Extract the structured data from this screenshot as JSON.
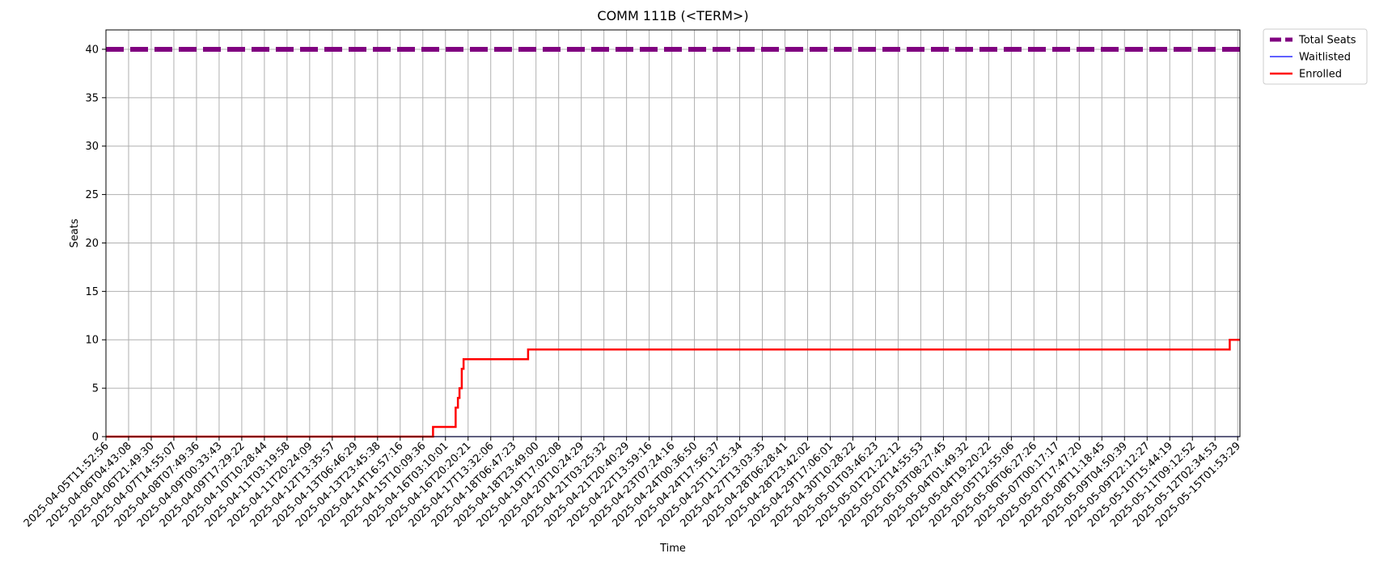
{
  "chart_data": {
    "type": "line",
    "title": "COMM 111B (<TERM>)",
    "xlabel": "Time",
    "ylabel": "Seats",
    "ylim": [
      0,
      42
    ],
    "yticks": [
      0,
      5,
      10,
      15,
      20,
      25,
      30,
      35,
      40
    ],
    "grid": true,
    "legend_position": "outside-top-right",
    "x_tick_labels": [
      "2025-04-05T11:52:56",
      "2025-04-06T04:43:08",
      "2025-04-06T21:49:30",
      "2025-04-07T14:55:07",
      "2025-04-08T07:49:36",
      "2025-04-09T00:33:43",
      "2025-04-09T17:29:22",
      "2025-04-10T10:28:44",
      "2025-04-11T03:19:58",
      "2025-04-11T20:24:09",
      "2025-04-12T13:35:57",
      "2025-04-13T06:46:29",
      "2025-04-13T23:45:38",
      "2025-04-14T16:57:16",
      "2025-04-15T10:09:36",
      "2025-04-16T03:10:01",
      "2025-04-16T20:20:21",
      "2025-04-17T13:32:06",
      "2025-04-18T06:47:23",
      "2025-04-18T23:49:00",
      "2025-04-19T17:02:08",
      "2025-04-20T10:24:29",
      "2025-04-21T03:25:32",
      "2025-04-21T20:40:29",
      "2025-04-22T13:59:16",
      "2025-04-23T07:24:16",
      "2025-04-24T00:36:50",
      "2025-04-24T17:56:37",
      "2025-04-25T11:25:34",
      "2025-04-27T13:03:35",
      "2025-04-28T06:28:41",
      "2025-04-28T23:42:02",
      "2025-04-29T17:06:01",
      "2025-04-30T10:28:22",
      "2025-05-01T03:46:23",
      "2025-05-01T21:22:12",
      "2025-05-02T14:55:53",
      "2025-05-03T08:27:45",
      "2025-05-04T01:49:32",
      "2025-05-04T19:20:22",
      "2025-05-05T12:55:06",
      "2025-05-06T06:27:26",
      "2025-05-07T00:17:17",
      "2025-05-07T17:47:20",
      "2025-05-08T11:18:45",
      "2025-05-09T04:50:39",
      "2025-05-09T22:12:27",
      "2025-05-10T15:44:19",
      "2025-05-11T09:12:52",
      "2025-05-12T02:34:53",
      "2025-05-15T01:53:29"
    ],
    "x_range_index": [
      0,
      50.1
    ],
    "series": [
      {
        "name": "Total Seats",
        "color": "#800080",
        "style": "dashed-thick",
        "points": [
          [
            0,
            40
          ],
          [
            50.1,
            40
          ]
        ]
      },
      {
        "name": "Waitlisted",
        "color": "#0000ff",
        "style": "thin",
        "points": [
          [
            0,
            0
          ],
          [
            50.1,
            0
          ]
        ]
      },
      {
        "name": "Enrolled",
        "color": "#ff0000",
        "style": "step",
        "points": [
          [
            0,
            0
          ],
          [
            14.45,
            0
          ],
          [
            14.45,
            1
          ],
          [
            15.45,
            1
          ],
          [
            15.45,
            3
          ],
          [
            15.55,
            3
          ],
          [
            15.55,
            4
          ],
          [
            15.62,
            4
          ],
          [
            15.62,
            5
          ],
          [
            15.72,
            5
          ],
          [
            15.72,
            7
          ],
          [
            15.8,
            7
          ],
          [
            15.8,
            8
          ],
          [
            18.65,
            8
          ],
          [
            18.65,
            9
          ],
          [
            49.65,
            9
          ],
          [
            49.65,
            10
          ],
          [
            50.1,
            10
          ]
        ]
      }
    ]
  }
}
